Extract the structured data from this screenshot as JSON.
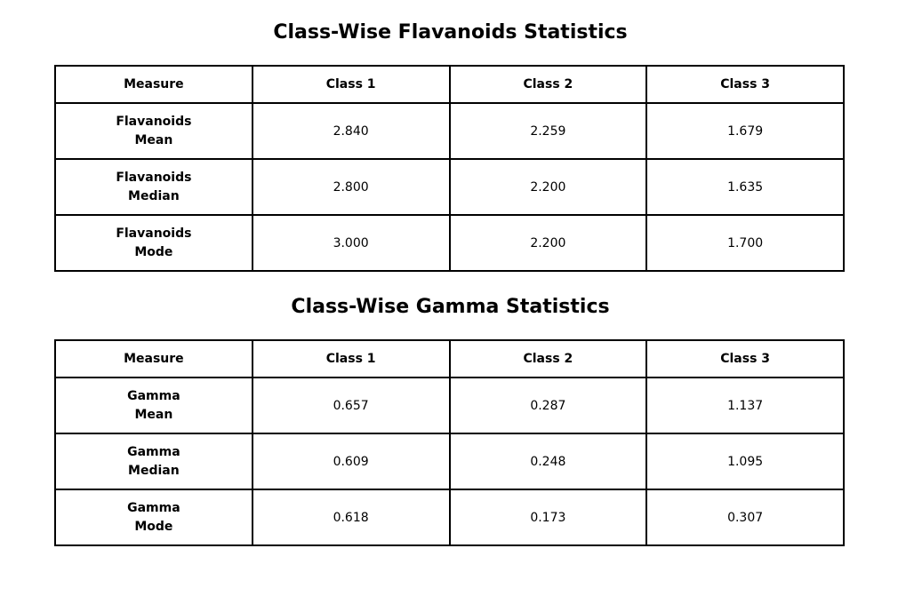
{
  "tables": [
    {
      "title": "Class-Wise Flavanoids Statistics",
      "headers": [
        "Measure",
        "Class 1",
        "Class 2",
        "Class 3"
      ],
      "rows": [
        {
          "measure": [
            "Flavanoids",
            "Mean"
          ],
          "values": [
            "2.840",
            "2.259",
            "1.679"
          ]
        },
        {
          "measure": [
            "Flavanoids",
            "Median"
          ],
          "values": [
            "2.800",
            "2.200",
            "1.635"
          ]
        },
        {
          "measure": [
            "Flavanoids",
            "Mode"
          ],
          "values": [
            "3.000",
            "2.200",
            "1.700"
          ]
        }
      ]
    },
    {
      "title": "Class-Wise Gamma Statistics",
      "headers": [
        "Measure",
        "Class 1",
        "Class 2",
        "Class 3"
      ],
      "rows": [
        {
          "measure": [
            "Gamma",
            "Mean"
          ],
          "values": [
            "0.657",
            "0.287",
            "1.137"
          ]
        },
        {
          "measure": [
            "Gamma",
            "Median"
          ],
          "values": [
            "0.609",
            "0.248",
            "1.095"
          ]
        },
        {
          "measure": [
            "Gamma",
            "Mode"
          ],
          "values": [
            "0.618",
            "0.173",
            "0.307"
          ]
        }
      ]
    }
  ]
}
